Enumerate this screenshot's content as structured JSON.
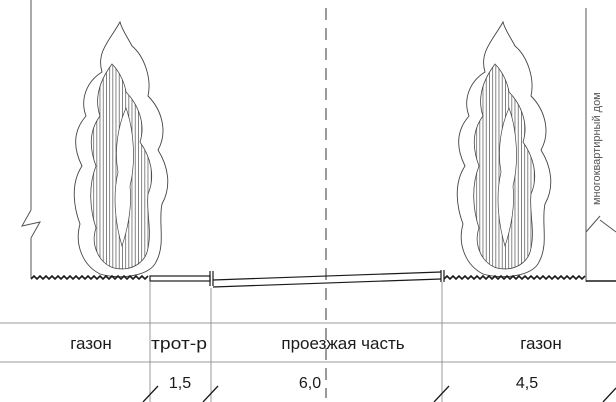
{
  "zones": [
    {
      "name": "газон",
      "width": "",
      "bind_width": false
    },
    {
      "name": "трот-р",
      "width": "1,5"
    },
    {
      "name": "проезжая часть",
      "width": "6,0"
    },
    {
      "name": "газон",
      "width": "4,5"
    }
  ],
  "building_label": "многоквартирный дом",
  "colors": {
    "line": "#1a1a1a",
    "tree_fill": "#ffffff",
    "hatch": "#333333",
    "grid": "#999999"
  },
  "icons": [
    "tree-icon",
    "break-symbol-icon",
    "ground-hatch-icon",
    "dimension-tick-icon"
  ]
}
